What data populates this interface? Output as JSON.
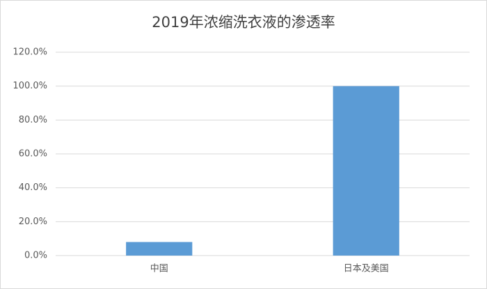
{
  "chart_data": {
    "type": "bar",
    "title": "2019年浓缩洗衣液的渗透率",
    "categories": [
      "中国",
      "日本及美国"
    ],
    "values": [
      8,
      100
    ],
    "color": "#5b9bd5",
    "ylim": [
      0,
      120
    ],
    "yticks": [
      {
        "value": 0,
        "label": "0.0%"
      },
      {
        "value": 20,
        "label": "20.0%"
      },
      {
        "value": 40,
        "label": "40.0%"
      },
      {
        "value": 60,
        "label": "60.0%"
      },
      {
        "value": 80,
        "label": "80.0%"
      },
      {
        "value": 100,
        "label": "100.0%"
      },
      {
        "value": 120,
        "label": "120.0%"
      }
    ],
    "grid": true
  }
}
